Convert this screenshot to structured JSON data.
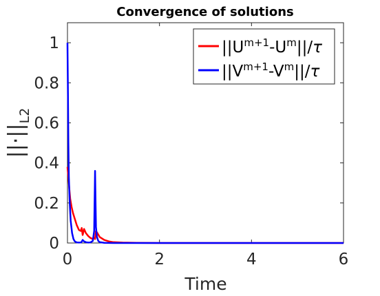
{
  "chart_data": {
    "type": "line",
    "title": "Convergence of solutions",
    "xlabel": "Time",
    "ylabel": "||·||",
    "ylabel_sub": "L2",
    "xlim": [
      0,
      6
    ],
    "ylim": [
      0,
      1.1
    ],
    "xticks": [
      0,
      2,
      4,
      6
    ],
    "yticks": [
      0,
      0.2,
      0.4,
      0.6,
      0.8,
      1
    ],
    "xtick_labels": [
      "0",
      "2",
      "4",
      "6"
    ],
    "ytick_labels": [
      "0",
      "0.2",
      "0.4",
      "0.6",
      "0.8",
      "1"
    ],
    "grid": false,
    "legend_position": "top-right",
    "series": [
      {
        "name": "||U^{m+1}-U^{m}||/τ",
        "color": "#ff0000",
        "x": [
          0.0,
          0.02,
          0.04,
          0.06,
          0.09,
          0.12,
          0.16,
          0.2,
          0.25,
          0.29,
          0.31,
          0.33,
          0.36,
          0.4,
          0.45,
          0.5,
          0.55,
          0.58,
          0.6,
          0.62,
          0.65,
          0.7,
          0.8,
          0.9,
          1.0,
          1.2,
          1.5,
          2.0,
          3.0,
          4.0,
          5.0,
          6.0
        ],
        "y": [
          0.38,
          0.33,
          0.27,
          0.22,
          0.18,
          0.15,
          0.12,
          0.09,
          0.065,
          0.06,
          0.075,
          0.04,
          0.07,
          0.05,
          0.035,
          0.025,
          0.02,
          0.025,
          0.02,
          0.06,
          0.05,
          0.03,
          0.015,
          0.008,
          0.004,
          0.002,
          0.001,
          0.0,
          0.0,
          0.0,
          0.0,
          0.0
        ]
      },
      {
        "name": "||V^{m+1}-V^{m}||/τ",
        "color": "#0000ff",
        "x": [
          0.0,
          0.01,
          0.02,
          0.03,
          0.05,
          0.07,
          0.1,
          0.13,
          0.16,
          0.2,
          0.25,
          0.3,
          0.33,
          0.36,
          0.4,
          0.45,
          0.5,
          0.55,
          0.58,
          0.6,
          0.61,
          0.62,
          0.64,
          0.67,
          0.7,
          0.8,
          1.0,
          1.5,
          2.0,
          3.0,
          4.0,
          5.0,
          6.0
        ],
        "y": [
          1.0,
          0.75,
          0.5,
          0.33,
          0.2,
          0.11,
          0.05,
          0.02,
          0.008,
          0.003,
          0.002,
          0.003,
          0.015,
          0.008,
          0.004,
          0.002,
          0.003,
          0.01,
          0.06,
          0.36,
          0.2,
          0.08,
          0.03,
          0.01,
          0.004,
          0.001,
          0.0,
          0.0,
          0.0,
          0.0,
          0.0,
          0.0,
          0.0
        ]
      }
    ]
  }
}
